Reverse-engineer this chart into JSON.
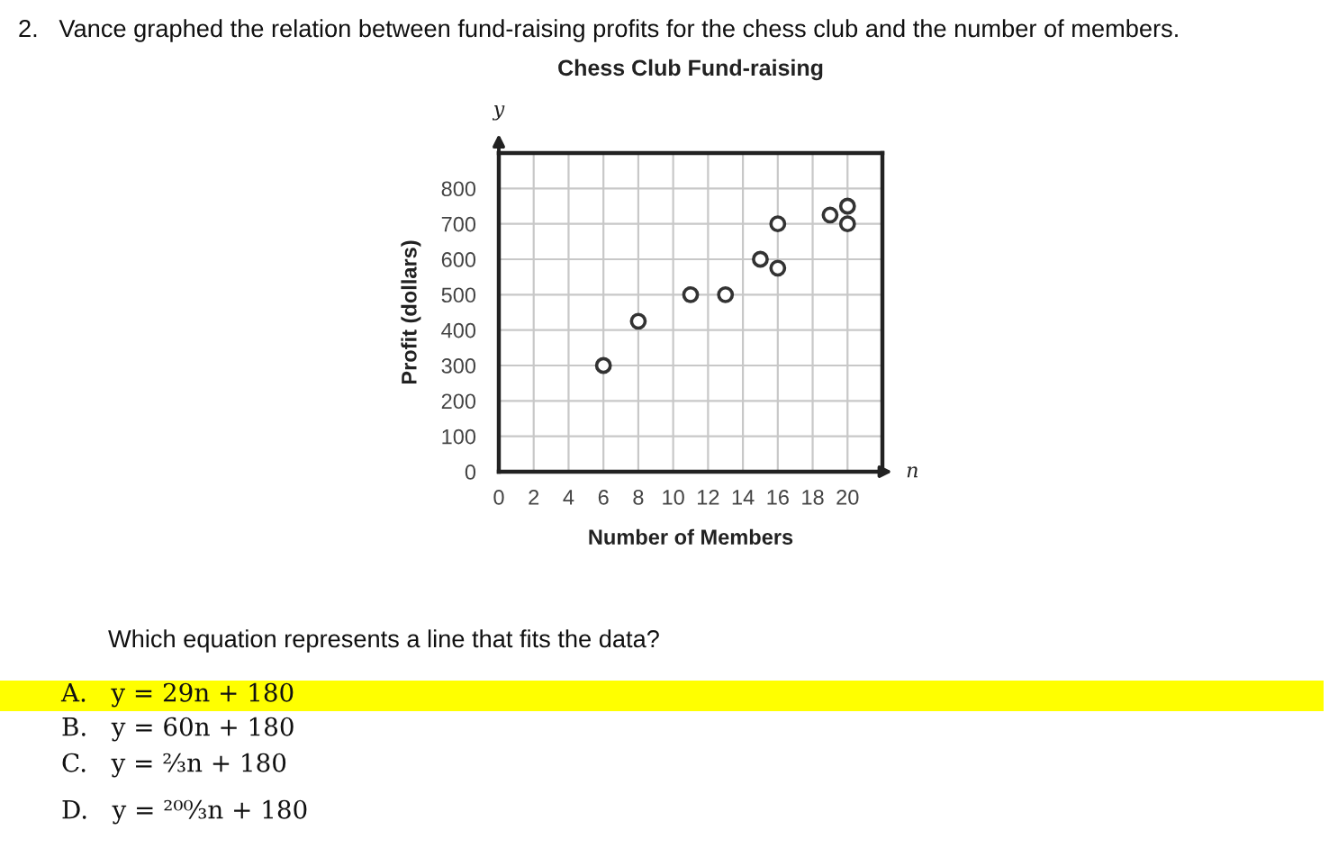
{
  "chart_data": {
    "type": "scatter",
    "title": "Chess Club Fund-raising",
    "xlabel": "Number of Members",
    "ylabel": "Profit (dollars)",
    "annotations": [
      "2.   Vance graphed the relation between fund-raising profits for the chess club and the number of members.",
      "y",
      "n",
      "Which equation represents a line that fits the data?",
      "A.   y = 29n + 180",
      "B.   y = 60n + 180",
      "C.   y = ⅔n + 180",
      "D.   y = ²⁰⁰⁄₃n + 180"
    ],
    "x": [
      6,
      8,
      11,
      13,
      15,
      16,
      16,
      19,
      20,
      20
    ],
    "series": [
      {
        "color": "#333333",
        "values": [
          300,
          425,
          500,
          500,
          600,
          575,
          700,
          725,
          750,
          700
        ]
      }
    ],
    "marker": "circle",
    "grid": true,
    "xlim": [
      0,
      22
    ],
    "ylim": [
      0,
      900
    ],
    "xticks": [
      0,
      2,
      4,
      6,
      8,
      10,
      12,
      14,
      16,
      18,
      20
    ],
    "yticks": [
      0,
      100,
      200,
      300,
      400,
      500,
      600,
      700,
      800
    ]
  }
}
